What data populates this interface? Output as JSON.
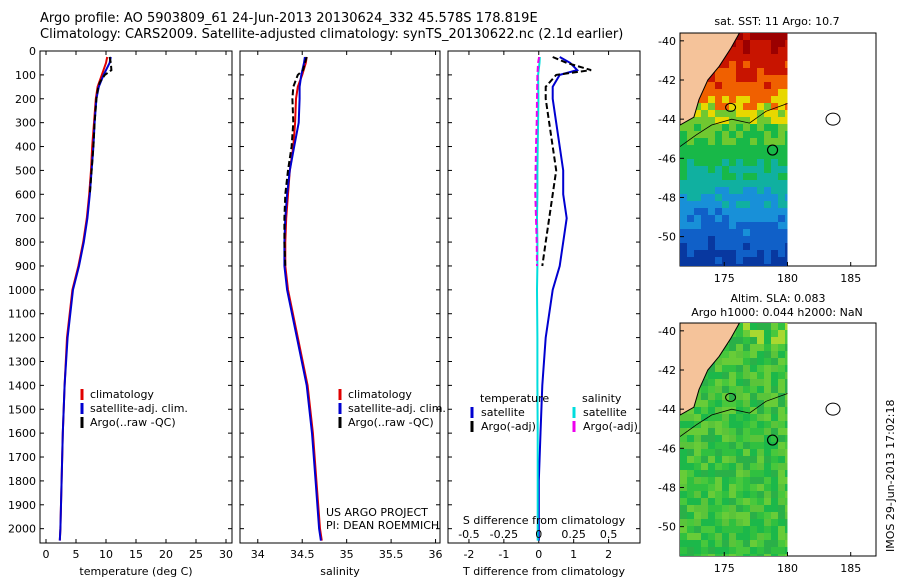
{
  "header": {
    "line1": "Argo profile: AO 5903809_61 24-Jun-2013 20130624_332 45.578S 178.819E",
    "line2": "Climatology: CARS2009. Satellite-adjusted climatology: synTS_20130622.nc (2.1d earlier)"
  },
  "footer_vertical": "IMOS 29-Jun-2013 17:02:18",
  "colors": {
    "climatology": "#e00000",
    "satellite": "#0000d0",
    "argo": "#000000",
    "satellite_salinity": "#00dddd",
    "argo_salinity": "#ee00ee",
    "land": "#f5c39a"
  },
  "chart_data": [
    {
      "type": "line",
      "panel": "temperature",
      "xlabel": "temperature (deg C)",
      "xticks": [
        0,
        5,
        10,
        15,
        20,
        25,
        30
      ],
      "xlim": [
        -1,
        31
      ],
      "ylim": [
        2060,
        0
      ],
      "yticks": [
        0,
        100,
        200,
        300,
        400,
        500,
        600,
        700,
        800,
        900,
        1000,
        1100,
        1200,
        1300,
        1400,
        1500,
        1600,
        1700,
        1800,
        1900,
        2000
      ],
      "legend": [
        "climatology",
        "satellite-adj. clim.",
        "Argo(..raw -QC)"
      ],
      "series": [
        {
          "name": "climatology",
          "color": "#e00000",
          "depth": [
            25,
            50,
            100,
            150,
            200,
            300,
            400,
            500,
            600,
            700,
            800,
            900,
            1000,
            1200,
            1400,
            1600,
            1800,
            2000,
            2050
          ],
          "values": [
            10.2,
            10.0,
            9.3,
            8.6,
            8.3,
            8.0,
            7.7,
            7.5,
            7.2,
            6.8,
            6.2,
            5.4,
            4.4,
            3.5,
            3.1,
            2.8,
            2.6,
            2.4,
            2.3
          ]
        },
        {
          "name": "satellite-adj. clim.",
          "color": "#0000d0",
          "depth": [
            25,
            50,
            100,
            150,
            200,
            300,
            400,
            500,
            600,
            700,
            800,
            900,
            1000,
            1200,
            1400,
            1600,
            1800,
            2000,
            2050
          ],
          "values": [
            10.8,
            10.6,
            9.6,
            8.8,
            8.4,
            8.1,
            7.9,
            7.6,
            7.3,
            6.9,
            6.3,
            5.5,
            4.5,
            3.6,
            3.1,
            2.8,
            2.6,
            2.4,
            2.3
          ]
        },
        {
          "name": "Argo(..raw -QC)",
          "color": "#000000",
          "dashed": true,
          "depth": [
            25,
            50,
            80,
            100,
            130,
            150,
            200,
            300,
            400,
            500,
            600
          ],
          "values": [
            10.6,
            10.8,
            10.9,
            9.8,
            9.0,
            8.7,
            8.4,
            8.1,
            7.9,
            7.6,
            7.3
          ]
        }
      ]
    },
    {
      "type": "line",
      "panel": "salinity",
      "xlabel": "salinity",
      "xticks": [
        34,
        34.5,
        35,
        35.5,
        36
      ],
      "xlim": [
        33.8,
        36.05
      ],
      "ylim": [
        2060,
        0
      ],
      "legend": [
        "climatology",
        "satellite-adj. clim.",
        "Argo(..raw -QC)"
      ],
      "annotations": [
        "US ARGO PROJECT",
        "PI: DEAN ROEMMICH"
      ],
      "series": [
        {
          "name": "climatology",
          "color": "#e00000",
          "depth": [
            25,
            50,
            100,
            150,
            200,
            300,
            400,
            500,
            600,
            700,
            800,
            900,
            1000,
            1200,
            1400,
            1600,
            1800,
            2000,
            2050
          ],
          "values": [
            34.55,
            34.54,
            34.5,
            34.45,
            34.43,
            34.42,
            34.4,
            34.36,
            34.34,
            34.32,
            34.31,
            34.31,
            34.34,
            34.45,
            34.56,
            34.62,
            34.66,
            34.7,
            34.72
          ]
        },
        {
          "name": "satellite-adj. clim.",
          "color": "#0000d0",
          "depth": [
            25,
            50,
            100,
            150,
            200,
            300,
            400,
            500,
            600,
            700,
            800,
            900,
            1000,
            1200,
            1400,
            1600,
            1800,
            2000,
            2050
          ],
          "values": [
            34.53,
            34.52,
            34.49,
            34.47,
            34.47,
            34.46,
            34.41,
            34.36,
            34.33,
            34.31,
            34.3,
            34.3,
            34.33,
            34.44,
            34.55,
            34.61,
            34.65,
            34.69,
            34.71
          ]
        },
        {
          "name": "Argo(..raw -QC)",
          "color": "#000000",
          "dashed": true,
          "depth": [
            25,
            50,
            80,
            100,
            150,
            200,
            300,
            400,
            500,
            600,
            700,
            800,
            900
          ],
          "values": [
            34.55,
            34.53,
            34.51,
            34.45,
            34.4,
            34.39,
            34.4,
            34.38,
            34.34,
            34.31,
            34.3,
            34.3,
            34.31
          ]
        }
      ]
    },
    {
      "type": "line",
      "panel": "difference",
      "xlabel": "T difference from climatology",
      "xticks": [
        -2,
        -1,
        0,
        1,
        2
      ],
      "top_xlabel": "S difference from climatology",
      "top_xticks": [
        -0.5,
        -0.25,
        0,
        0.25,
        0.5
      ],
      "xlim": [
        -2.6,
        2.9
      ],
      "ylim": [
        2060,
        0
      ],
      "legend_headers": [
        "temperature",
        "salinity"
      ],
      "legend": [
        "satellite",
        "Argo(-adj)",
        "satellite",
        "Argo(-adj)"
      ],
      "series": [
        {
          "name": "satellite",
          "group": "temperature",
          "color": "#0000d0",
          "depth": [
            25,
            50,
            80,
            100,
            150,
            200,
            300,
            400,
            500,
            600,
            700,
            800,
            900,
            1000,
            1200,
            1400,
            1600,
            1800,
            2000,
            2050
          ],
          "values": [
            0.6,
            0.9,
            1.1,
            0.6,
            0.4,
            0.4,
            0.5,
            0.6,
            0.7,
            0.7,
            0.8,
            0.7,
            0.6,
            0.4,
            0.2,
            0.1,
            0.05,
            0.0,
            0.0,
            0.0
          ]
        },
        {
          "name": "Argo(-adj)",
          "group": "temperature",
          "color": "#000000",
          "dashed": true,
          "depth": [
            25,
            50,
            80,
            100,
            150,
            200,
            300,
            400,
            500,
            600,
            700,
            800,
            900
          ],
          "values": [
            0.4,
            0.8,
            1.5,
            0.5,
            0.2,
            0.2,
            0.3,
            0.4,
            0.5,
            0.4,
            0.3,
            0.2,
            0.1
          ]
        },
        {
          "name": "satellite",
          "group": "salinity",
          "color": "#00dddd",
          "depth": [
            25,
            50,
            100,
            200,
            300,
            400,
            500,
            600,
            700,
            800,
            900,
            1000,
            1200,
            1400,
            1600,
            1800,
            2000,
            2050
          ],
          "values": [
            0.03,
            0.02,
            -0.02,
            -0.01,
            -0.02,
            -0.03,
            -0.04,
            -0.04,
            -0.05,
            -0.04,
            -0.04,
            -0.05,
            -0.04,
            -0.04,
            -0.03,
            -0.03,
            -0.03,
            -0.03
          ]
        },
        {
          "name": "Argo(-adj)",
          "group": "salinity",
          "color": "#ee00ee",
          "dashed": true,
          "depth": [
            25,
            50,
            100,
            200,
            300,
            400,
            500,
            600,
            700,
            800,
            900
          ],
          "values": [
            0.01,
            -0.02,
            -0.04,
            -0.05,
            -0.06,
            -0.08,
            -0.09,
            -0.1,
            -0.08,
            -0.06,
            -0.05
          ]
        }
      ]
    },
    {
      "type": "heatmap",
      "panel": "sst-map",
      "title": "sat. SST: 11 Argo: 10.7",
      "xticks": [
        175,
        180,
        185
      ],
      "yticks": [
        -40,
        -42,
        -44,
        -46,
        -48,
        -50
      ],
      "xlim": [
        171.5,
        187
      ],
      "ylim": [
        -51.5,
        -39.6
      ],
      "data_extent_lon": [
        171.5,
        180
      ],
      "argo_position": {
        "lon": 178.819,
        "lat": -45.578
      }
    },
    {
      "type": "heatmap",
      "panel": "sla-map",
      "title": "Altim. SLA: 0.083",
      "subtitle": "Argo h1000: 0.044 h2000: NaN",
      "xticks": [
        175,
        180,
        185
      ],
      "yticks": [
        -40,
        -42,
        -44,
        -46,
        -48,
        -50
      ],
      "xlim": [
        171.5,
        187
      ],
      "ylim": [
        -51.5,
        -39.6
      ],
      "data_extent_lon": [
        171.5,
        180
      ],
      "argo_position": {
        "lon": 178.819,
        "lat": -45.578
      }
    }
  ]
}
